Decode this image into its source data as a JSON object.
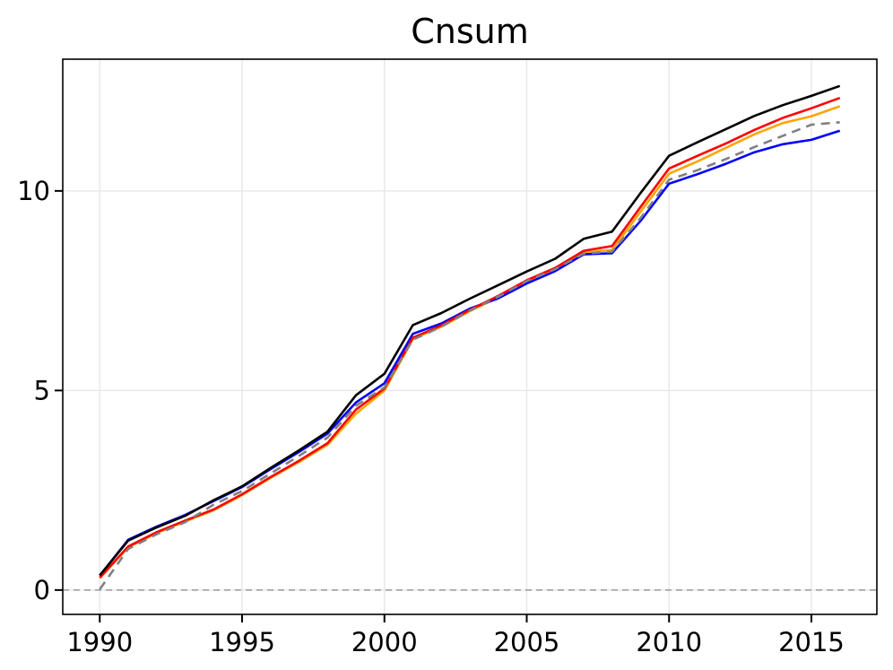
{
  "figure": {
    "background": "#ffffff"
  },
  "chart_data": {
    "type": "line",
    "title": "Cnsum",
    "xlabel": "",
    "ylabel": "",
    "x": [
      1990,
      1991,
      1992,
      1993,
      1994,
      1995,
      1996,
      1997,
      1998,
      1999,
      2000,
      2001,
      2002,
      2003,
      2004,
      2005,
      2006,
      2007,
      2008,
      2009,
      2010,
      2011,
      2012,
      2013,
      2014,
      2015,
      2016
    ],
    "series": [
      {
        "name": "orange",
        "color": "#ffa500",
        "style": "solid",
        "values": [
          0.3,
          1.07,
          1.43,
          1.72,
          2.0,
          2.38,
          2.81,
          3.21,
          3.64,
          4.42,
          5.0,
          6.29,
          6.6,
          6.99,
          7.33,
          7.72,
          8.02,
          8.45,
          8.52,
          9.48,
          10.43,
          10.74,
          11.08,
          11.42,
          11.7,
          11.87,
          12.12
        ]
      },
      {
        "name": "blue",
        "color": "#0000ff",
        "style": "solid",
        "values": [
          0.36,
          1.26,
          1.59,
          1.88,
          2.23,
          2.58,
          3.03,
          3.46,
          3.92,
          4.7,
          5.18,
          6.42,
          6.68,
          7.05,
          7.31,
          7.68,
          7.99,
          8.41,
          8.44,
          9.25,
          10.18,
          10.42,
          10.68,
          10.97,
          11.17,
          11.28,
          11.51
        ]
      },
      {
        "name": "red",
        "color": "#ff0000",
        "style": "solid",
        "values": [
          0.31,
          1.09,
          1.45,
          1.74,
          2.02,
          2.4,
          2.83,
          3.24,
          3.68,
          4.52,
          5.05,
          6.32,
          6.63,
          7.02,
          7.37,
          7.76,
          8.07,
          8.5,
          8.62,
          9.6,
          10.56,
          10.88,
          11.19,
          11.53,
          11.83,
          12.07,
          12.33
        ]
      },
      {
        "name": "gray-dashed",
        "color": "#808080",
        "style": "dashed",
        "values": [
          0.02,
          1.03,
          1.4,
          1.7,
          2.14,
          2.48,
          2.92,
          3.36,
          3.82,
          4.62,
          5.08,
          6.27,
          6.6,
          7.0,
          7.35,
          7.74,
          8.04,
          8.43,
          8.48,
          9.32,
          10.28,
          10.52,
          10.8,
          11.1,
          11.38,
          11.66,
          11.72
        ]
      },
      {
        "name": "black",
        "color": "#000000",
        "style": "solid",
        "values": [
          0.37,
          1.24,
          1.57,
          1.86,
          2.25,
          2.6,
          3.06,
          3.5,
          3.97,
          4.88,
          5.42,
          6.64,
          6.94,
          7.3,
          7.64,
          7.98,
          8.3,
          8.8,
          8.98,
          9.95,
          10.88,
          11.22,
          11.55,
          11.88,
          12.15,
          12.38,
          12.63
        ]
      }
    ],
    "xticks": [
      1990,
      1995,
      2000,
      2005,
      2010,
      2015
    ],
    "yticks": [
      0,
      5,
      10
    ],
    "xlim": [
      1988.7,
      2017.3
    ],
    "ylim": [
      -0.61,
      13.3
    ],
    "grid": true,
    "legend": false,
    "zero_line": {
      "y": 0,
      "color": "#999999",
      "style": "dashed"
    },
    "grid_color": "#e6e6e6",
    "spine_color": "#000000"
  }
}
